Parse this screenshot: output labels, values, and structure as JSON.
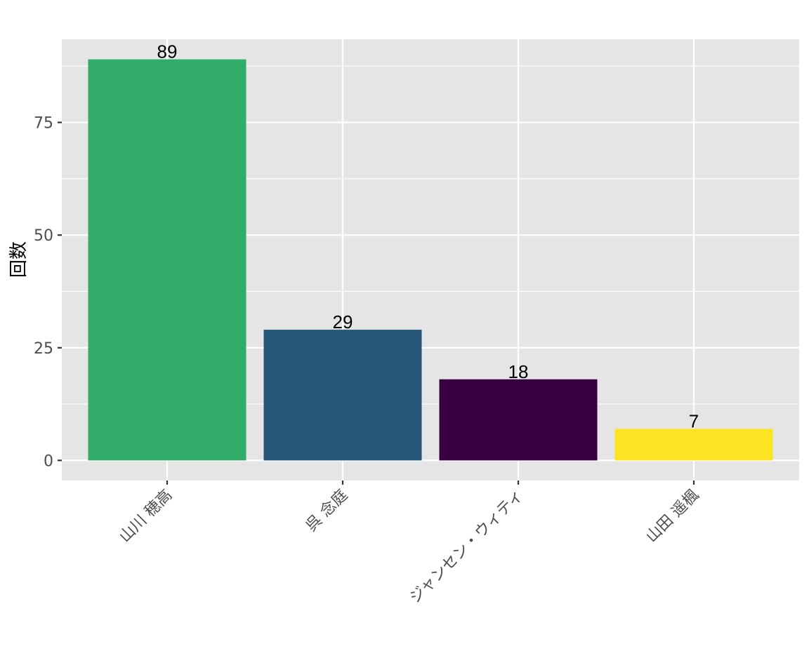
{
  "chart_data": {
    "type": "bar",
    "title": "",
    "xlabel": "",
    "ylabel": "回数",
    "categories": [
      "山川 穂高",
      "呉 念庭",
      "ジャンセン・ウィティ",
      "山田 遥楓"
    ],
    "values": [
      89,
      29,
      18,
      7
    ],
    "bar_colors": [
      "#31AD69",
      "#27577A",
      "#37003E",
      "#FDE423"
    ],
    "ylim": [
      -4.45,
      93.45
    ],
    "yticks": [
      0,
      25,
      50,
      75
    ],
    "ytick_labels": [
      "0",
      "25",
      "50",
      "75"
    ],
    "grid": true,
    "legend": "none",
    "panel_color": "#E5E5E5",
    "grid_color": "#FFFFFF"
  }
}
